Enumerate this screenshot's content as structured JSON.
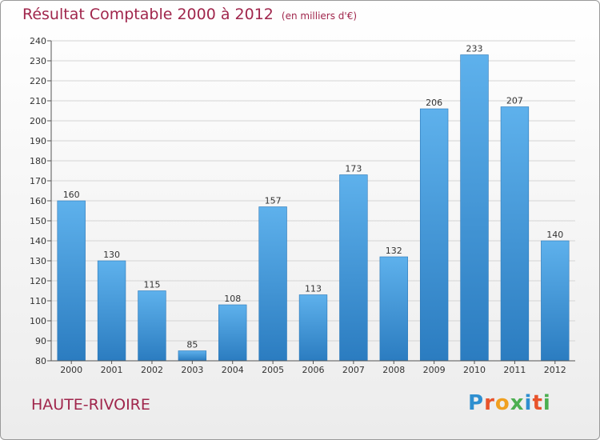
{
  "title": "Résultat Comptable 2000 à 2012",
  "subtitle": "(en milliers d'€)",
  "place": "HAUTE-RIVOIRE",
  "logo": {
    "letters": [
      "P",
      "r",
      "o",
      "x",
      "i",
      "t",
      "i"
    ],
    "colors": [
      "#2f8fd0",
      "#e8532b",
      "#f0a020",
      "#4caf50",
      "#2f8fd0",
      "#e8532b",
      "#4caf50"
    ]
  },
  "colors": {
    "bar_light": "#5eb1ec",
    "bar_dark": "#2b7cc0",
    "title": "#a0264c"
  },
  "chart_data": {
    "type": "bar",
    "title": "Résultat Comptable 2000 à 2012",
    "subtitle": "(en milliers d'€)",
    "categories": [
      "2000",
      "2001",
      "2002",
      "2003",
      "2004",
      "2005",
      "2006",
      "2007",
      "2008",
      "2009",
      "2010",
      "2011",
      "2012"
    ],
    "values": [
      160,
      130,
      115,
      85,
      108,
      157,
      113,
      173,
      132,
      206,
      233,
      207,
      140
    ],
    "ylim": [
      80,
      240
    ],
    "yticks": [
      80,
      90,
      100,
      110,
      120,
      130,
      140,
      150,
      160,
      170,
      180,
      190,
      200,
      210,
      220,
      230,
      240
    ],
    "grid": true,
    "legend": "none"
  }
}
